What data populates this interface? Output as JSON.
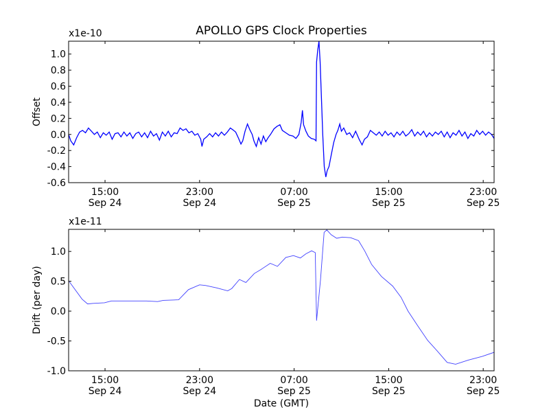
{
  "chart_data": [
    {
      "type": "line",
      "title": "APOLLO GPS Clock Properties",
      "xlabel": "",
      "ylabel": "Offset",
      "scale_label": "x1e-10",
      "x_units": "hours since Sep 24 00:00 GMT",
      "xlim": [
        11.92,
        47.92
      ],
      "ylim": [
        -0.6,
        1.16
      ],
      "yticks": [
        -0.6,
        -0.4,
        -0.2,
        0.0,
        0.2,
        0.4,
        0.6,
        0.8,
        1.0
      ],
      "ytick_labels": [
        "-0.6",
        "-0.4",
        "-0.2",
        "0.0",
        "0.2",
        "0.4",
        "0.6",
        "0.8",
        "1.0"
      ],
      "xticks": [
        15,
        23,
        31,
        39,
        47
      ],
      "xtick_labels": [
        [
          "15:00",
          "Sep 24"
        ],
        [
          "23:00",
          "Sep 24"
        ],
        [
          "07:00",
          "Sep 25"
        ],
        [
          "15:00",
          "Sep 25"
        ],
        [
          "23:00",
          "Sep 25"
        ]
      ],
      "color": "#0000ff",
      "series": [
        {
          "name": "Offset",
          "points": [
            [
              11.92,
              0.0
            ],
            [
              12.1,
              -0.08
            ],
            [
              12.35,
              -0.13
            ],
            [
              12.6,
              -0.04
            ],
            [
              12.85,
              0.03
            ],
            [
              13.1,
              0.05
            ],
            [
              13.35,
              0.02
            ],
            [
              13.6,
              0.08
            ],
            [
              13.85,
              0.04
            ],
            [
              14.1,
              0.0
            ],
            [
              14.35,
              0.03
            ],
            [
              14.6,
              -0.04
            ],
            [
              14.85,
              0.02
            ],
            [
              15.1,
              -0.01
            ],
            [
              15.35,
              0.03
            ],
            [
              15.6,
              -0.06
            ],
            [
              15.85,
              0.01
            ],
            [
              16.1,
              0.02
            ],
            [
              16.35,
              -0.03
            ],
            [
              16.6,
              0.03
            ],
            [
              16.85,
              -0.02
            ],
            [
              17.1,
              0.02
            ],
            [
              17.35,
              -0.05
            ],
            [
              17.6,
              0.01
            ],
            [
              17.85,
              0.03
            ],
            [
              18.1,
              -0.03
            ],
            [
              18.35,
              0.02
            ],
            [
              18.6,
              -0.04
            ],
            [
              18.85,
              0.04
            ],
            [
              19.1,
              -0.02
            ],
            [
              19.35,
              0.01
            ],
            [
              19.6,
              -0.07
            ],
            [
              19.85,
              0.03
            ],
            [
              20.1,
              -0.02
            ],
            [
              20.35,
              0.04
            ],
            [
              20.6,
              -0.03
            ],
            [
              20.85,
              0.02
            ],
            [
              21.1,
              0.01
            ],
            [
              21.35,
              0.08
            ],
            [
              21.6,
              0.05
            ],
            [
              21.85,
              0.07
            ],
            [
              22.1,
              0.02
            ],
            [
              22.35,
              0.04
            ],
            [
              22.6,
              -0.01
            ],
            [
              22.85,
              0.01
            ],
            [
              23.1,
              -0.06
            ],
            [
              23.2,
              -0.15
            ],
            [
              23.35,
              -0.06
            ],
            [
              23.6,
              -0.03
            ],
            [
              23.85,
              0.01
            ],
            [
              24.1,
              -0.03
            ],
            [
              24.35,
              0.02
            ],
            [
              24.6,
              -0.02
            ],
            [
              24.85,
              0.03
            ],
            [
              25.1,
              -0.01
            ],
            [
              25.35,
              0.03
            ],
            [
              25.6,
              0.08
            ],
            [
              25.8,
              0.06
            ],
            [
              26.05,
              0.03
            ],
            [
              26.3,
              -0.05
            ],
            [
              26.5,
              -0.12
            ],
            [
              26.65,
              -0.08
            ],
            [
              26.85,
              0.04
            ],
            [
              27.05,
              0.13
            ],
            [
              27.25,
              0.06
            ],
            [
              27.45,
              0.0
            ],
            [
              27.6,
              -0.08
            ],
            [
              27.8,
              -0.15
            ],
            [
              28.0,
              -0.04
            ],
            [
              28.2,
              -0.12
            ],
            [
              28.4,
              -0.02
            ],
            [
              28.6,
              -0.09
            ],
            [
              28.8,
              -0.04
            ],
            [
              29.0,
              0.0
            ],
            [
              29.3,
              0.07
            ],
            [
              29.55,
              0.1
            ],
            [
              29.8,
              0.12
            ],
            [
              30.0,
              0.05
            ],
            [
              30.3,
              0.02
            ],
            [
              30.6,
              -0.01
            ],
            [
              30.9,
              -0.02
            ],
            [
              31.15,
              -0.05
            ],
            [
              31.4,
              0.0
            ],
            [
              31.6,
              0.15
            ],
            [
              31.7,
              0.3
            ],
            [
              31.8,
              0.12
            ],
            [
              32.0,
              0.04
            ],
            [
              32.2,
              -0.02
            ],
            [
              32.45,
              -0.05
            ],
            [
              32.7,
              -0.06
            ],
            [
              32.85,
              -0.08
            ],
            [
              32.9,
              0.9
            ],
            [
              33.0,
              1.05
            ],
            [
              33.1,
              1.16
            ],
            [
              33.2,
              0.9
            ],
            [
              33.3,
              0.5
            ],
            [
              33.42,
              0.0
            ],
            [
              33.55,
              -0.4
            ],
            [
              33.68,
              -0.53
            ],
            [
              33.8,
              -0.45
            ],
            [
              33.95,
              -0.4
            ],
            [
              34.15,
              -0.25
            ],
            [
              34.35,
              -0.1
            ],
            [
              34.55,
              0.0
            ],
            [
              34.7,
              0.05
            ],
            [
              34.86,
              0.13
            ],
            [
              35.0,
              0.04
            ],
            [
              35.2,
              0.08
            ],
            [
              35.45,
              0.0
            ],
            [
              35.7,
              0.02
            ],
            [
              35.95,
              -0.04
            ],
            [
              36.2,
              0.04
            ],
            [
              36.5,
              -0.06
            ],
            [
              36.75,
              -0.13
            ],
            [
              36.95,
              -0.06
            ],
            [
              37.2,
              -0.03
            ],
            [
              37.45,
              0.05
            ],
            [
              37.7,
              0.02
            ],
            [
              37.95,
              -0.01
            ],
            [
              38.2,
              0.03
            ],
            [
              38.45,
              -0.02
            ],
            [
              38.7,
              0.04
            ],
            [
              38.95,
              -0.01
            ],
            [
              39.2,
              0.02
            ],
            [
              39.45,
              -0.03
            ],
            [
              39.7,
              0.03
            ],
            [
              39.95,
              -0.01
            ],
            [
              40.2,
              0.04
            ],
            [
              40.45,
              -0.02
            ],
            [
              40.7,
              0.01
            ],
            [
              40.95,
              0.06
            ],
            [
              41.2,
              -0.02
            ],
            [
              41.45,
              0.03
            ],
            [
              41.7,
              -0.01
            ],
            [
              41.95,
              0.04
            ],
            [
              42.2,
              -0.03
            ],
            [
              42.45,
              0.02
            ],
            [
              42.7,
              -0.02
            ],
            [
              42.95,
              0.03
            ],
            [
              43.2,
              0.0
            ],
            [
              43.45,
              0.04
            ],
            [
              43.7,
              -0.03
            ],
            [
              43.95,
              0.03
            ],
            [
              44.2,
              -0.04
            ],
            [
              44.45,
              0.02
            ],
            [
              44.7,
              -0.01
            ],
            [
              44.95,
              0.05
            ],
            [
              45.2,
              -0.02
            ],
            [
              45.45,
              0.03
            ],
            [
              45.7,
              -0.05
            ],
            [
              45.95,
              0.01
            ],
            [
              46.2,
              -0.02
            ],
            [
              46.45,
              0.05
            ],
            [
              46.7,
              0.0
            ],
            [
              46.95,
              0.04
            ],
            [
              47.2,
              -0.01
            ],
            [
              47.45,
              0.03
            ],
            [
              47.7,
              0.0
            ],
            [
              47.92,
              -0.05
            ]
          ]
        }
      ]
    },
    {
      "type": "line",
      "title": "",
      "xlabel": "Date (GMT)",
      "ylabel": "Drift (per day)",
      "scale_label": "x1e-11",
      "x_units": "hours since Sep 24 00:00 GMT",
      "xlim": [
        11.92,
        47.92
      ],
      "ylim": [
        -1.0,
        1.37
      ],
      "yticks": [
        -1.0,
        -0.5,
        0.0,
        0.5,
        1.0
      ],
      "ytick_labels": [
        "-1.0",
        "-0.5",
        "0.0",
        "0.5",
        "1.0"
      ],
      "xticks": [
        15,
        23,
        31,
        39,
        47
      ],
      "xtick_labels": [
        [
          "15:00",
          "Sep 24"
        ],
        [
          "23:00",
          "Sep 24"
        ],
        [
          "07:00",
          "Sep 25"
        ],
        [
          "15:00",
          "Sep 25"
        ],
        [
          "23:00",
          "Sep 25"
        ]
      ],
      "color": "#4040ff",
      "series": [
        {
          "name": "Drift",
          "points": [
            [
              11.99,
              0.49
            ],
            [
              13.06,
              0.2
            ],
            [
              13.53,
              0.12
            ],
            [
              14.0,
              0.13
            ],
            [
              14.95,
              0.14
            ],
            [
              15.54,
              0.17
            ],
            [
              17.32,
              0.17
            ],
            [
              18.5,
              0.17
            ],
            [
              19.45,
              0.16
            ],
            [
              19.93,
              0.18
            ],
            [
              21.23,
              0.19
            ],
            [
              22.06,
              0.36
            ],
            [
              23.0,
              0.44
            ],
            [
              23.49,
              0.43
            ],
            [
              24.43,
              0.39
            ],
            [
              25.38,
              0.34
            ],
            [
              25.73,
              0.38
            ],
            [
              26.37,
              0.53
            ],
            [
              26.92,
              0.48
            ],
            [
              27.63,
              0.63
            ],
            [
              28.22,
              0.7
            ],
            [
              28.98,
              0.8
            ],
            [
              29.59,
              0.75
            ],
            [
              30.3,
              0.9
            ],
            [
              30.94,
              0.93
            ],
            [
              31.53,
              0.89
            ],
            [
              32.0,
              0.96
            ],
            [
              32.48,
              1.01
            ],
            [
              32.79,
              0.98
            ],
            [
              32.9,
              -0.16
            ],
            [
              33.23,
              0.52
            ],
            [
              33.54,
              1.32
            ],
            [
              33.77,
              1.36
            ],
            [
              34.13,
              1.28
            ],
            [
              34.6,
              1.22
            ],
            [
              35.08,
              1.24
            ],
            [
              35.79,
              1.23
            ],
            [
              36.45,
              1.18
            ],
            [
              36.97,
              1.01
            ],
            [
              37.56,
              0.78
            ],
            [
              38.39,
              0.58
            ],
            [
              39.34,
              0.42
            ],
            [
              40.05,
              0.23
            ],
            [
              40.64,
              0.0
            ],
            [
              41.47,
              -0.25
            ],
            [
              42.3,
              -0.49
            ],
            [
              43.12,
              -0.67
            ],
            [
              43.95,
              -0.86
            ],
            [
              44.66,
              -0.89
            ],
            [
              45.73,
              -0.82
            ],
            [
              46.91,
              -0.76
            ],
            [
              47.92,
              -0.69
            ]
          ]
        }
      ]
    }
  ]
}
